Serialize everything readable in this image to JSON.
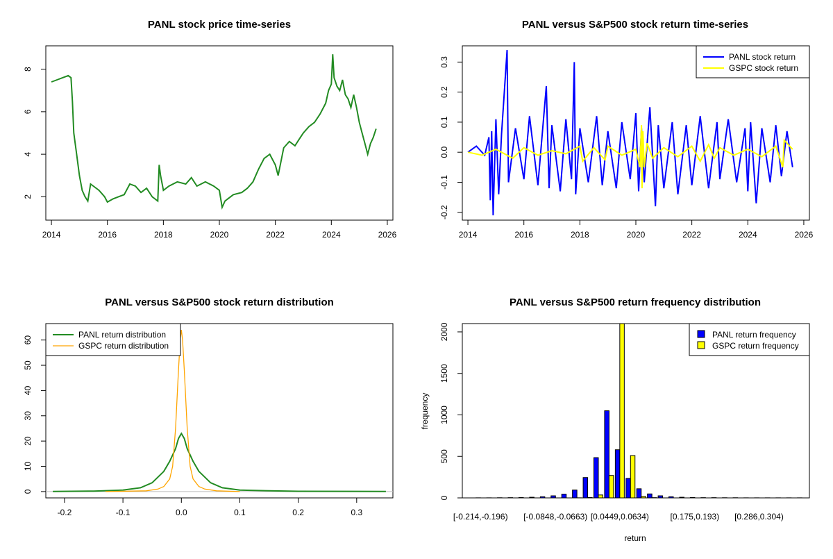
{
  "colors": {
    "price": "#228B22",
    "panl_return": "#0000FF",
    "gspc_return": "#FFFF00",
    "panl_density": "#228B22",
    "gspc_density": "#FFA500",
    "panl_hist": "#0000FF",
    "gspc_hist": "#FFFF00"
  },
  "chart_data": [
    {
      "type": "line",
      "title": "PANL stock price time-series",
      "xlabel": "",
      "ylabel": "",
      "xlim": [
        2013.8,
        2026.2
      ],
      "ylim": [
        0.9,
        9.1
      ],
      "xticks": [
        2014,
        2016,
        2018,
        2020,
        2022,
        2024,
        2026
      ],
      "xtick_labels": [
        "2014",
        "2016",
        "2018",
        "2020",
        "2022",
        "2024",
        "2026"
      ],
      "yticks": [
        2,
        4,
        6,
        8
      ],
      "ytick_labels": [
        "2",
        "4",
        "6",
        "8"
      ],
      "series": [
        {
          "x": [
            2014.0,
            2014.2,
            2014.4,
            2014.6,
            2014.7,
            2014.75,
            2014.8,
            2014.9,
            2015.0,
            2015.1,
            2015.2,
            2015.3,
            2015.4,
            2015.5,
            2015.7,
            2015.9,
            2016.0,
            2016.2,
            2016.4,
            2016.6,
            2016.8,
            2017.0,
            2017.2,
            2017.4,
            2017.6,
            2017.8,
            2017.85,
            2017.9,
            2018.0,
            2018.2,
            2018.5,
            2018.8,
            2019.0,
            2019.2,
            2019.5,
            2019.8,
            2020.0,
            2020.1,
            2020.2,
            2020.3,
            2020.5,
            2020.8,
            2021.0,
            2021.2,
            2021.4,
            2021.6,
            2021.8,
            2022.0,
            2022.1,
            2022.3,
            2022.5,
            2022.7,
            2022.9,
            2023.0,
            2023.2,
            2023.4,
            2023.6,
            2023.8,
            2023.9,
            2024.0,
            2024.05,
            2024.1,
            2024.2,
            2024.3,
            2024.4,
            2024.5,
            2024.6,
            2024.7,
            2024.8,
            2024.9,
            2025.0,
            2025.1,
            2025.2,
            2025.3,
            2025.4,
            2025.5,
            2025.6
          ],
          "y": [
            7.4,
            7.5,
            7.6,
            7.7,
            7.6,
            6.5,
            5.0,
            4.0,
            3.0,
            2.3,
            2.0,
            1.8,
            2.6,
            2.5,
            2.3,
            2.0,
            1.75,
            1.9,
            2.0,
            2.1,
            2.6,
            2.5,
            2.2,
            2.4,
            2.0,
            1.8,
            3.5,
            3.0,
            2.3,
            2.5,
            2.7,
            2.6,
            2.9,
            2.5,
            2.7,
            2.5,
            2.3,
            1.5,
            1.8,
            1.9,
            2.1,
            2.2,
            2.4,
            2.7,
            3.3,
            3.8,
            4.0,
            3.5,
            3.0,
            4.3,
            4.6,
            4.4,
            4.8,
            5.0,
            5.3,
            5.5,
            5.9,
            6.4,
            7.0,
            7.3,
            8.7,
            7.6,
            7.2,
            7.0,
            7.5,
            6.8,
            6.6,
            6.2,
            6.8,
            6.2,
            5.5,
            5.0,
            4.5,
            4.0,
            4.5,
            4.8,
            5.2
          ]
        }
      ]
    },
    {
      "type": "line",
      "title": "PANL versus S&P500 stock return time-series",
      "xlabel": "",
      "ylabel": "",
      "xlim": [
        2013.8,
        2026.2
      ],
      "ylim": [
        -0.226,
        0.354
      ],
      "xticks": [
        2014,
        2016,
        2018,
        2020,
        2022,
        2024,
        2026
      ],
      "xtick_labels": [
        "2014",
        "2016",
        "2018",
        "2020",
        "2022",
        "2024",
        "2026"
      ],
      "yticks": [
        -0.2,
        -0.1,
        0.0,
        0.1,
        0.2,
        0.3
      ],
      "ytick_labels": [
        "-0.2",
        "-0.1",
        "0.0",
        "0.1",
        "0.2",
        "0.3"
      ],
      "legend": "top-right",
      "series": [
        {
          "name": "PANL stock return",
          "x": [
            2014.0,
            2014.3,
            2014.6,
            2014.75,
            2014.8,
            2014.85,
            2014.9,
            2015.0,
            2015.1,
            2015.2,
            2015.4,
            2015.45,
            2015.7,
            2016.0,
            2016.2,
            2016.5,
            2016.8,
            2016.9,
            2017.0,
            2017.3,
            2017.5,
            2017.7,
            2017.8,
            2017.85,
            2018.0,
            2018.3,
            2018.6,
            2018.8,
            2019.0,
            2019.3,
            2019.5,
            2019.8,
            2020.0,
            2020.1,
            2020.2,
            2020.3,
            2020.5,
            2020.7,
            2020.8,
            2021.0,
            2021.3,
            2021.5,
            2021.8,
            2022.0,
            2022.3,
            2022.6,
            2022.9,
            2023.0,
            2023.3,
            2023.6,
            2023.9,
            2024.0,
            2024.1,
            2024.3,
            2024.5,
            2024.8,
            2025.0,
            2025.2,
            2025.4,
            2025.6
          ],
          "y": [
            0.0,
            0.02,
            -0.01,
            0.05,
            -0.16,
            0.07,
            -0.21,
            0.11,
            -0.14,
            0.06,
            0.34,
            -0.1,
            0.08,
            -0.09,
            0.12,
            -0.11,
            0.22,
            -0.12,
            0.09,
            -0.13,
            0.11,
            -0.09,
            0.3,
            -0.14,
            0.08,
            -0.1,
            0.12,
            -0.11,
            0.07,
            -0.12,
            0.1,
            -0.09,
            0.13,
            -0.13,
            0.08,
            -0.1,
            0.15,
            -0.18,
            0.09,
            -0.12,
            0.1,
            -0.14,
            0.09,
            -0.11,
            0.12,
            -0.12,
            0.1,
            -0.09,
            0.11,
            -0.1,
            0.08,
            -0.13,
            0.1,
            -0.17,
            0.08,
            -0.1,
            0.09,
            -0.08,
            0.07,
            -0.05
          ]
        },
        {
          "name": "GSPC stock return",
          "x": [
            2014.0,
            2014.5,
            2015.0,
            2015.6,
            2016.0,
            2016.5,
            2017.0,
            2017.5,
            2018.0,
            2018.1,
            2018.5,
            2018.9,
            2019.0,
            2019.5,
            2020.0,
            2020.15,
            2020.2,
            2020.22,
            2020.25,
            2020.3,
            2020.4,
            2020.6,
            2021.0,
            2021.5,
            2022.0,
            2022.3,
            2022.6,
            2022.8,
            2023.0,
            2023.5,
            2024.0,
            2024.5,
            2025.0,
            2025.25,
            2025.3,
            2025.6
          ],
          "y": [
            0.0,
            -0.01,
            0.01,
            -0.02,
            0.015,
            -0.01,
            0.005,
            -0.005,
            0.02,
            -0.03,
            0.015,
            -0.025,
            0.02,
            -0.01,
            0.01,
            -0.05,
            0.09,
            -0.12,
            0.07,
            -0.05,
            0.03,
            -0.02,
            0.015,
            -0.015,
            0.02,
            -0.03,
            0.025,
            -0.02,
            0.015,
            -0.01,
            0.01,
            -0.015,
            0.02,
            -0.05,
            0.04,
            0.01
          ]
        }
      ]
    },
    {
      "type": "line",
      "title": "PANL versus S&P500 stock return distribution",
      "xlabel": "",
      "ylabel": "",
      "xlim": [
        -0.232,
        0.362
      ],
      "ylim": [
        -2.5,
        66.5
      ],
      "xticks": [
        -0.2,
        -0.1,
        0.0,
        0.1,
        0.2,
        0.3
      ],
      "xtick_labels": [
        "-0.2",
        "-0.1",
        "0.0",
        "0.1",
        "0.2",
        "0.3"
      ],
      "yticks": [
        0,
        10,
        20,
        30,
        40,
        50,
        60
      ],
      "ytick_labels": [
        "0",
        "10",
        "20",
        "30",
        "40",
        "50",
        "60"
      ],
      "legend": "top-left",
      "baseline": 0,
      "series": [
        {
          "name": "PANL return distribution",
          "x": [
            -0.22,
            -0.15,
            -0.1,
            -0.07,
            -0.05,
            -0.03,
            -0.02,
            -0.01,
            -0.005,
            0.0,
            0.005,
            0.01,
            0.02,
            0.03,
            0.05,
            0.07,
            0.1,
            0.15,
            0.2,
            0.35
          ],
          "y": [
            0.05,
            0.2,
            0.6,
            1.5,
            3.5,
            8.0,
            12.0,
            17.0,
            21.0,
            23.0,
            21.0,
            17.0,
            12.0,
            8.0,
            3.5,
            1.5,
            0.6,
            0.3,
            0.1,
            0.05
          ]
        },
        {
          "name": "GSPC return distribution",
          "x": [
            -0.13,
            -0.06,
            -0.04,
            -0.03,
            -0.02,
            -0.015,
            -0.01,
            -0.005,
            -0.002,
            0.0,
            0.002,
            0.005,
            0.01,
            0.015,
            0.02,
            0.03,
            0.04,
            0.06,
            0.1
          ],
          "y": [
            0.0,
            0.3,
            1.0,
            2.0,
            5.0,
            10.0,
            25.0,
            48.0,
            60.0,
            64.0,
            60.0,
            48.0,
            25.0,
            10.0,
            5.0,
            2.0,
            1.0,
            0.3,
            0.0
          ]
        }
      ]
    },
    {
      "type": "bar",
      "title": "PANL versus S&P500 return frequency distribution",
      "xlabel": "return",
      "ylabel": "frequency",
      "ylim": [
        0,
        2100
      ],
      "yticks": [
        0,
        500,
        1000,
        1500,
        2000
      ],
      "ytick_labels": [
        "0",
        "500",
        "1000",
        "1500",
        "2000"
      ],
      "legend": "top-right",
      "categories": [
        "[-0.214,-0.196)",
        "",
        "",
        "",
        "",
        "",
        "",
        "[-0.0848,-0.0663)",
        "",
        "",
        "",
        "",
        "",
        "[0.0449,0.0634)",
        "",
        "",
        "",
        "",
        "",
        "",
        "[0.175,0.193)",
        "",
        "",
        "",
        "",
        "",
        "[0.286,0.304)",
        "",
        "",
        "",
        ""
      ],
      "series": [
        {
          "name": "PANL return frequency",
          "values": [
            1,
            1,
            2,
            3,
            4,
            8,
            14,
            25,
            45,
            95,
            245,
            485,
            1050,
            580,
            235,
            110,
            48,
            25,
            14,
            8,
            5,
            3,
            3,
            2,
            2,
            1,
            1,
            1,
            1,
            1,
            1
          ]
        },
        {
          "name": "GSPC return frequency",
          "values": [
            0,
            0,
            0,
            0,
            0,
            0,
            0,
            0,
            0,
            1,
            5,
            35,
            270,
            2100,
            510,
            18,
            3,
            0,
            0,
            0,
            0,
            0,
            0,
            0,
            0,
            0,
            0,
            0,
            0,
            0,
            0
          ]
        }
      ]
    }
  ]
}
